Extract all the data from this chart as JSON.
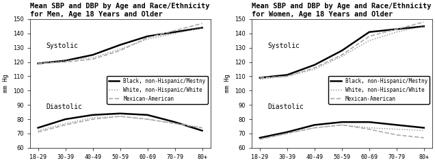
{
  "age_labels": [
    "18-29",
    "30-39",
    "40-49",
    "50-59",
    "60-69",
    "70-79",
    "80+"
  ],
  "men": {
    "title": "Mean SBP and DBP by Age and Race/Ethnicity\nfor Men, Age 18 Years and Older",
    "sbp_black": [
      119,
      121,
      125,
      132,
      138,
      141,
      144
    ],
    "sbp_white": [
      119,
      121,
      123,
      129,
      136,
      140,
      144
    ],
    "sbp_mexican": [
      119,
      120,
      122,
      128,
      137,
      142,
      147
    ],
    "dbp_black": [
      74,
      80,
      83,
      84,
      83,
      78,
      72
    ],
    "dbp_white": [
      72,
      77,
      81,
      82,
      80,
      77,
      74
    ],
    "dbp_mexican": [
      71,
      76,
      80,
      82,
      80,
      77,
      74
    ]
  },
  "women": {
    "title": "Mean SBP and DBP by Age and Race/Ethnicity\nfor Women, Age 18 Years and Older",
    "sbp_black": [
      109,
      111,
      118,
      128,
      141,
      143,
      145
    ],
    "sbp_white": [
      108,
      110,
      115,
      124,
      135,
      141,
      145
    ],
    "sbp_mexican": [
      109,
      110,
      116,
      125,
      138,
      143,
      148
    ],
    "dbp_black": [
      67,
      71,
      76,
      78,
      78,
      76,
      74
    ],
    "dbp_white": [
      66,
      70,
      74,
      76,
      74,
      73,
      72
    ],
    "dbp_mexican": [
      66,
      70,
      74,
      76,
      73,
      69,
      67
    ]
  },
  "legend_labels": [
    "Black, non-Hispanic/Mestny",
    "White, non-Hispanic/White",
    "Mexican-American"
  ],
  "ylim": [
    60,
    150
  ],
  "yticks": [
    60,
    70,
    80,
    90,
    100,
    110,
    120,
    130,
    140,
    150
  ],
  "ylabel": "mm Hg",
  "black_color": "#000000",
  "white_color": "#888888",
  "mexican_color": "#aaaaaa",
  "title_fontsize": 7.5,
  "label_fontsize": 6.5,
  "tick_fontsize": 6,
  "legend_fontsize": 5.5,
  "annotation_fontsize": 7
}
